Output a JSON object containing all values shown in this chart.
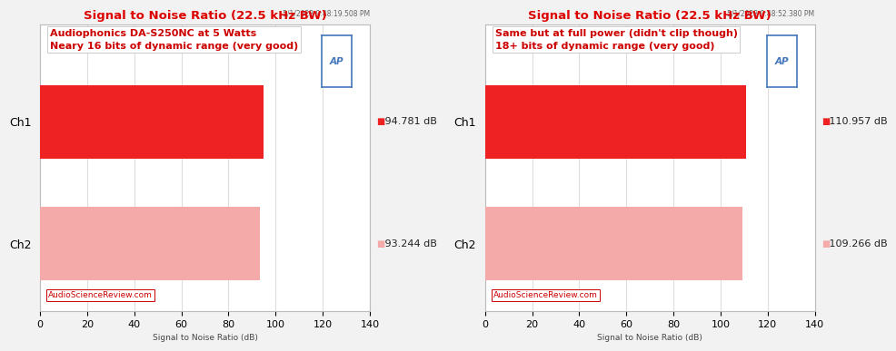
{
  "plots": [
    {
      "title": "Signal to Noise Ratio (22.5 kHz BW)",
      "timestamp": "5/1/2023 9:48:19.508 PM",
      "annotation_line1": "Audiophonics DA-S250NC at 5 Watts",
      "annotation_line2": "Neary 16 bits of dynamic range (very good)",
      "channels": [
        "Ch1",
        "Ch2"
      ],
      "values": [
        94.781,
        93.244
      ],
      "colors": [
        "#EE2222",
        "#F5AAAA"
      ],
      "legend_labels": [
        "94.781 dB",
        "93.244 dB"
      ],
      "xlabel": "Signal to Noise Ratio (dB)",
      "xlim": [
        0,
        140
      ],
      "xticks": [
        0,
        20,
        40,
        60,
        80,
        100,
        120,
        140
      ],
      "watermark": "AudioScienceReview.com"
    },
    {
      "title": "Signal to Noise Ratio (22.5 kHz BW)",
      "timestamp": "5/1/2023 9:48:52.380 PM",
      "annotation_line1": "Same but at full power (didn't clip though)",
      "annotation_line2": "18+ bits of dynamic range (very good)",
      "channels": [
        "Ch1",
        "Ch2"
      ],
      "values": [
        110.957,
        109.266
      ],
      "colors": [
        "#EE2222",
        "#F5AAAA"
      ],
      "legend_labels": [
        "110.957 dB",
        "109.266 dB"
      ],
      "xlabel": "Signal to Noise Ratio (dB)",
      "xlim": [
        0,
        140
      ],
      "xticks": [
        0,
        20,
        40,
        60,
        80,
        100,
        120,
        140
      ],
      "watermark": "AudioScienceReview.com"
    }
  ],
  "fig_bg": "#F2F2F2",
  "plot_bg": "#FFFFFF",
  "title_color": "#DD0000",
  "annotation_color": "#CC0000",
  "timestamp_color": "#666666",
  "bar_height": 0.6,
  "ap_logo_color": "#4477BB",
  "grid_color": "#DDDDDD",
  "spine_color": "#BBBBBB"
}
